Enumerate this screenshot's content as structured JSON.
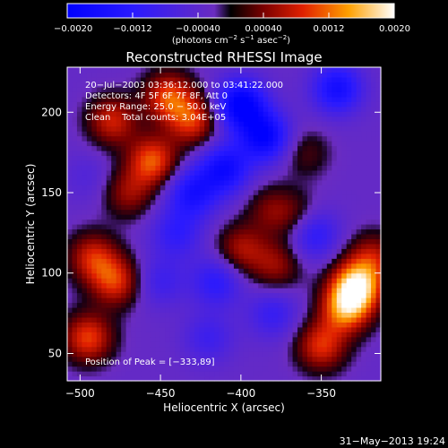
{
  "chart_data": {
    "type": "heatmap",
    "title": "Reconstructed RHESSI Image",
    "xlabel": "Heliocentric X (arcsec)",
    "ylabel": "Heliocentric Y (arcsec)",
    "xlim": [
      -508,
      -313
    ],
    "ylim": [
      33,
      228
    ],
    "x_ticks": [
      -500,
      -450,
      -400,
      -350
    ],
    "y_ticks": [
      50,
      100,
      150,
      200
    ],
    "x_tick_labels": [
      "−500",
      "−450",
      "−400",
      "−350"
    ],
    "y_tick_labels": [
      "50",
      "100",
      "150",
      "200"
    ],
    "colorbar": {
      "range": [
        -0.002,
        0.002
      ],
      "ticks": [
        -0.002,
        -0.0012,
        -0.0004,
        0.0004,
        0.0012,
        0.002
      ],
      "tick_labels": [
        "−0.0020",
        "−0.0012",
        "−0.00040",
        "0.00040",
        "0.0012",
        "0.0020"
      ],
      "label_main": "(photons cm",
      "label_sup1": "−2",
      "label_mid1": " s",
      "label_sup2": "−1",
      "label_mid2": " asec",
      "label_sup3": "−2",
      "label_end": ")"
    },
    "annotations": {
      "time": "20−Jul−2003 03:36:12.000 to 03:41:22.000",
      "detectors": "Detectors: 4F 5F 6F 7F 8F, Att 0",
      "energy": "Energy Range: 25.0 − 50.0 keV",
      "clean": "Clean    Total counts: 3.04E+05",
      "peak": "Position of Peak = [−333,89]"
    },
    "peak": [
      -333,
      89
    ],
    "features": [
      {
        "x": -480,
        "y": 195,
        "value": 0.0011
      },
      {
        "x": -455,
        "y": 170,
        "value": 0.0014
      },
      {
        "x": -470,
        "y": 150,
        "value": 0.0008
      },
      {
        "x": -492,
        "y": 110,
        "value": 0.0011
      },
      {
        "x": -478,
        "y": 95,
        "value": 0.0012
      },
      {
        "x": -495,
        "y": 60,
        "value": 0.0013
      },
      {
        "x": -445,
        "y": 210,
        "value": 0.0013
      },
      {
        "x": -430,
        "y": 195,
        "value": 0.0012
      },
      {
        "x": -382,
        "y": 140,
        "value": 0.0006
      },
      {
        "x": -400,
        "y": 115,
        "value": 0.0009
      },
      {
        "x": -378,
        "y": 105,
        "value": 0.0008
      },
      {
        "x": -365,
        "y": 135,
        "value": 0.0006
      },
      {
        "x": -360,
        "y": 175,
        "value": 0.0005
      },
      {
        "x": -335,
        "y": 78,
        "value": 0.0015
      },
      {
        "x": -328,
        "y": 92,
        "value": 0.002
      },
      {
        "x": -350,
        "y": 55,
        "value": 0.0012
      },
      {
        "x": -318,
        "y": 110,
        "value": 0.0009
      },
      {
        "x": -400,
        "y": 205,
        "value": -0.0018
      },
      {
        "x": -385,
        "y": 185,
        "value": -0.0016
      },
      {
        "x": -410,
        "y": 165,
        "value": -0.0014
      },
      {
        "x": -340,
        "y": 215,
        "value": -0.0013
      },
      {
        "x": -430,
        "y": 150,
        "value": -0.0012
      },
      {
        "x": -440,
        "y": 125,
        "value": -0.0008
      },
      {
        "x": -415,
        "y": 95,
        "value": -0.0009
      },
      {
        "x": -450,
        "y": 95,
        "value": -0.0006
      },
      {
        "x": -420,
        "y": 60,
        "value": -0.0006
      },
      {
        "x": -380,
        "y": 75,
        "value": -0.0007
      },
      {
        "x": -355,
        "y": 125,
        "value": -0.001
      },
      {
        "x": -495,
        "y": 160,
        "value": -0.0003
      }
    ]
  },
  "footer": {
    "date": "31−May−2013 19:24"
  }
}
